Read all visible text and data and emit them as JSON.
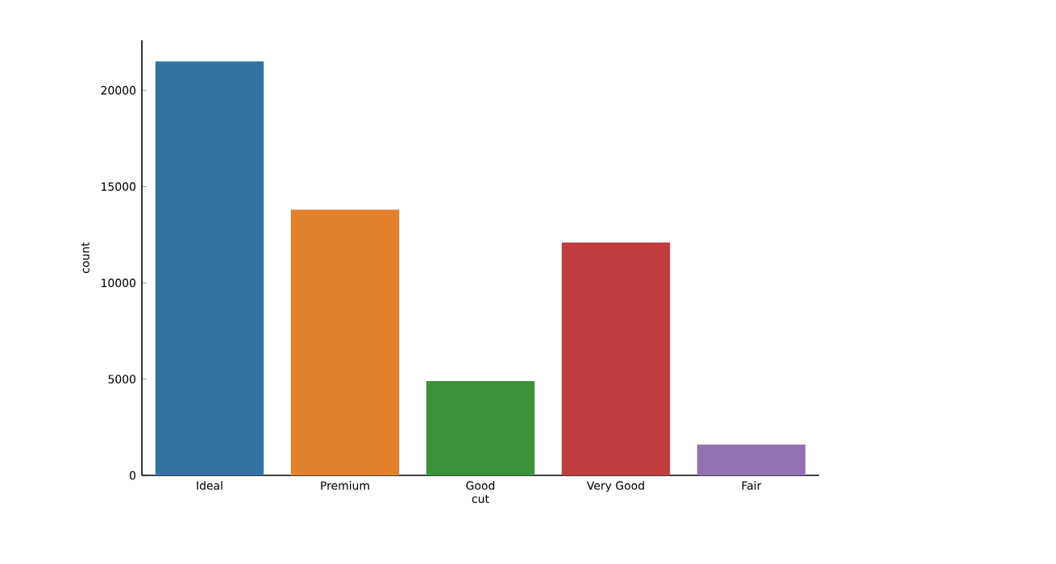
{
  "chart_data": {
    "type": "bar",
    "xlabel": "cut",
    "ylabel": "count",
    "categories": [
      "Ideal",
      "Premium",
      "Good",
      "Very Good",
      "Fair"
    ],
    "values": [
      21500,
      13800,
      4900,
      12100,
      1600
    ],
    "colors": [
      "#3274a1",
      "#e1812c",
      "#3a923a",
      "#c03d3e",
      "#9372b2"
    ],
    "ylim": [
      0,
      22600
    ],
    "yticks": [
      0,
      5000,
      10000,
      15000,
      20000
    ]
  }
}
